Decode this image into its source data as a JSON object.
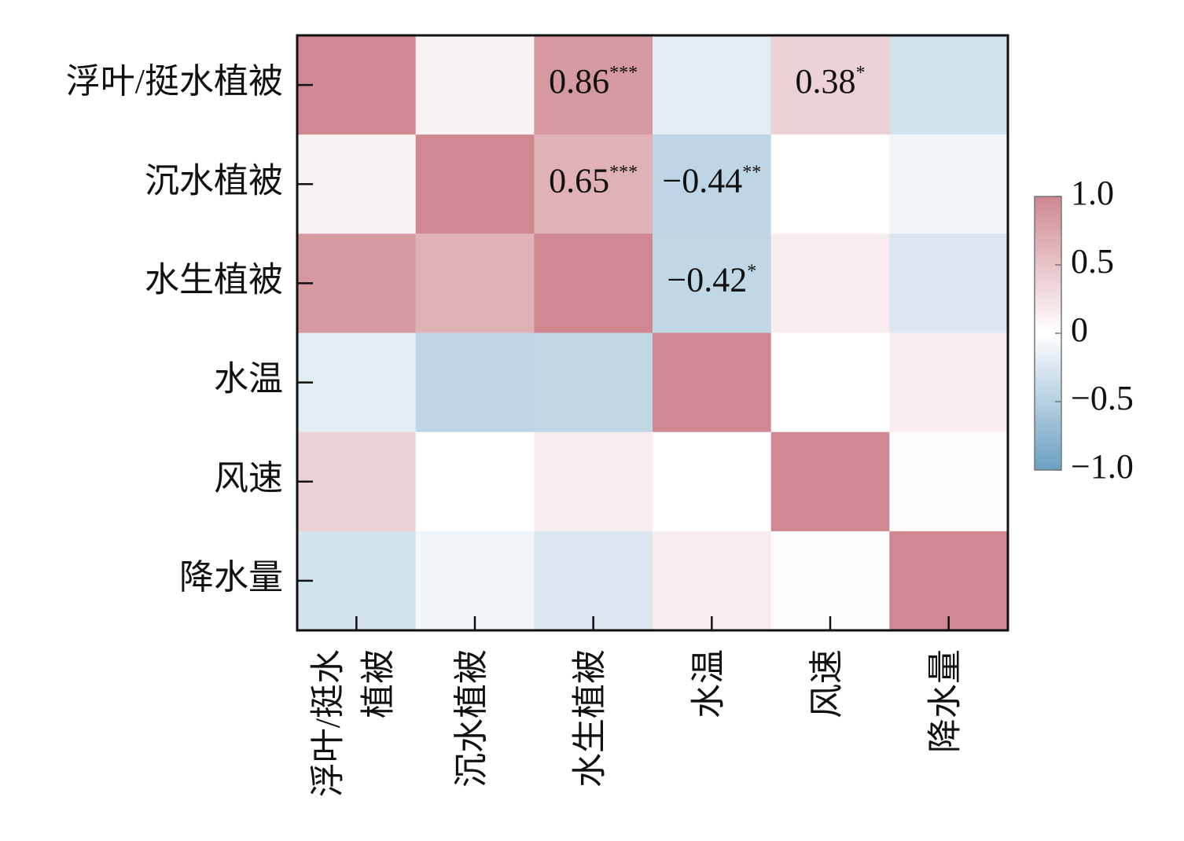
{
  "chart_data": {
    "type": "heatmap",
    "x_categories": [
      [
        "浮叶/挺水",
        "植被"
      ],
      [
        "沉水植被"
      ],
      [
        "水生植被"
      ],
      [
        "水温"
      ],
      [
        "风速"
      ],
      [
        "降水量"
      ]
    ],
    "y_categories": [
      "浮叶/挺水植被",
      "沉水植被",
      "水生植被",
      "水温",
      "风速",
      "降水量"
    ],
    "values": [
      [
        1,
        0.1,
        0.86,
        -0.2,
        0.38,
        -0.3
      ],
      [
        0.1,
        1,
        0.65,
        -0.44,
        0,
        -0.1
      ],
      [
        0.86,
        0.65,
        1,
        -0.42,
        0.15,
        -0.25
      ],
      [
        -0.2,
        -0.44,
        -0.42,
        1,
        0,
        0.15
      ],
      [
        0.38,
        0,
        0.15,
        0,
        1,
        0.03
      ],
      [
        -0.3,
        -0.1,
        -0.25,
        0.15,
        0.03,
        1
      ]
    ],
    "value_labels": [
      [
        null,
        null,
        "0.86***",
        null,
        "0.38*",
        null
      ],
      [
        null,
        null,
        "0.65***",
        "−0.44**",
        null,
        null
      ],
      [
        null,
        null,
        null,
        "−0.42*",
        null,
        null
      ],
      [
        null,
        null,
        null,
        null,
        null,
        null
      ],
      [
        null,
        null,
        null,
        null,
        null,
        null
      ],
      [
        null,
        null,
        null,
        null,
        null,
        null
      ]
    ],
    "colormap": [
      "#6aa0c2",
      "#ffffff",
      "#cf8890"
    ],
    "clim": [
      -1,
      1
    ],
    "cticks": [
      {
        "value": 1,
        "label": "1.0"
      },
      0.5,
      0,
      {
        "value": -0.5,
        "label": "−0.5"
      },
      {
        "value": -1,
        "label": "−1.0"
      }
    ]
  }
}
